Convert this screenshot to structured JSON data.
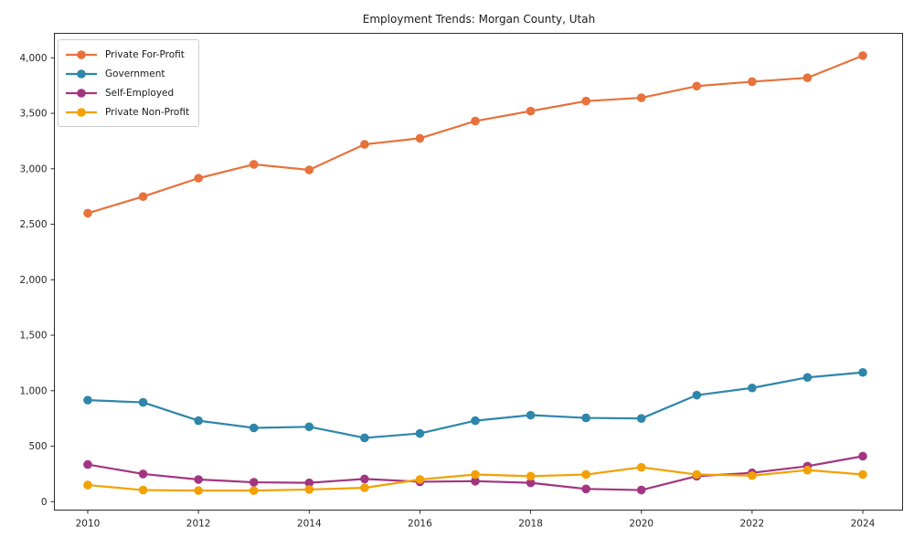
{
  "chart_data": {
    "type": "line",
    "title": "Employment Trends: Morgan County, Utah",
    "xlabel": "",
    "ylabel": "",
    "x": [
      2010,
      2011,
      2012,
      2013,
      2014,
      2015,
      2016,
      2017,
      2018,
      2019,
      2020,
      2021,
      2022,
      2023,
      2024
    ],
    "x_tick_labels": [
      "2010",
      "2012",
      "2014",
      "2016",
      "2018",
      "2020",
      "2022",
      "2024"
    ],
    "y_ticks": [
      0,
      500,
      1000,
      1500,
      2000,
      2500,
      3000,
      3500,
      4000
    ],
    "y_tick_labels": [
      "0",
      "500",
      "1,000",
      "1,500",
      "2,000",
      "2,500",
      "3,000",
      "3,500",
      "4,000"
    ],
    "ylim": [
      -80,
      4210
    ],
    "xlim": [
      2009.4,
      2024.73
    ],
    "grid": false,
    "legend_position": "upper-left",
    "marker": "circle",
    "series": [
      {
        "name": "Private For-Profit",
        "color": "#e8713c",
        "values": [
          2600,
          2750,
          2915,
          3040,
          2990,
          3220,
          3275,
          3430,
          3520,
          3610,
          3640,
          3745,
          3785,
          3820,
          4020
        ]
      },
      {
        "name": "Government",
        "color": "#2e86ab",
        "values": [
          915,
          895,
          730,
          665,
          675,
          575,
          615,
          730,
          780,
          755,
          750,
          960,
          1025,
          1120,
          1165
        ]
      },
      {
        "name": "Self-Employed",
        "color": "#a23582",
        "values": [
          335,
          250,
          200,
          175,
          170,
          205,
          180,
          185,
          170,
          115,
          105,
          230,
          260,
          320,
          410
        ]
      },
      {
        "name": "Private Non-Profit",
        "color": "#f2a104",
        "values": [
          150,
          105,
          100,
          100,
          110,
          125,
          200,
          245,
          230,
          245,
          310,
          245,
          235,
          285,
          245
        ]
      }
    ]
  },
  "colors": {
    "background": "#ffffff",
    "text": "#1a1a1a",
    "spine": "#2b2b2b",
    "legend_border": "#cccccc"
  }
}
